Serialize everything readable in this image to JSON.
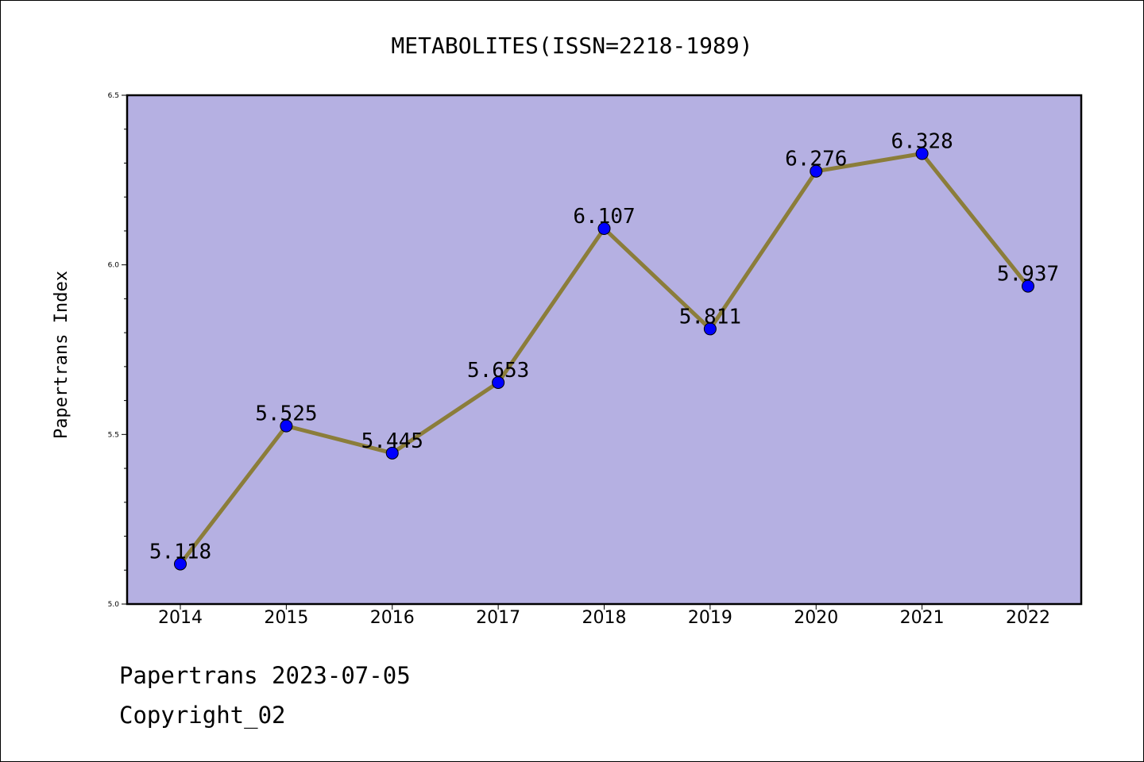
{
  "chart_data": {
    "type": "line",
    "title": "METABOLITES(ISSN=2218-1989)",
    "xlabel": "",
    "ylabel": "Papertrans Index",
    "categories": [
      "2014",
      "2015",
      "2016",
      "2017",
      "2018",
      "2019",
      "2020",
      "2021",
      "2022"
    ],
    "values": [
      5.118,
      5.525,
      5.445,
      5.653,
      6.107,
      5.811,
      6.276,
      6.328,
      5.937
    ],
    "data_labels": [
      "5.118",
      "5.525",
      "5.445",
      "5.653",
      "6.107",
      "5.811",
      "6.276",
      "6.328",
      "5.937"
    ],
    "ylim": [
      5.0,
      6.5
    ],
    "yticks": [
      "5.0",
      "5.5",
      "6.0",
      "6.5"
    ],
    "grid": false,
    "colors": {
      "plot_background": "#b5b0e2",
      "line": "#8b7d3a",
      "marker": "#0000ff"
    }
  },
  "footer": {
    "line1": "Papertrans 2023-07-05",
    "line2": "Copyright_02"
  }
}
